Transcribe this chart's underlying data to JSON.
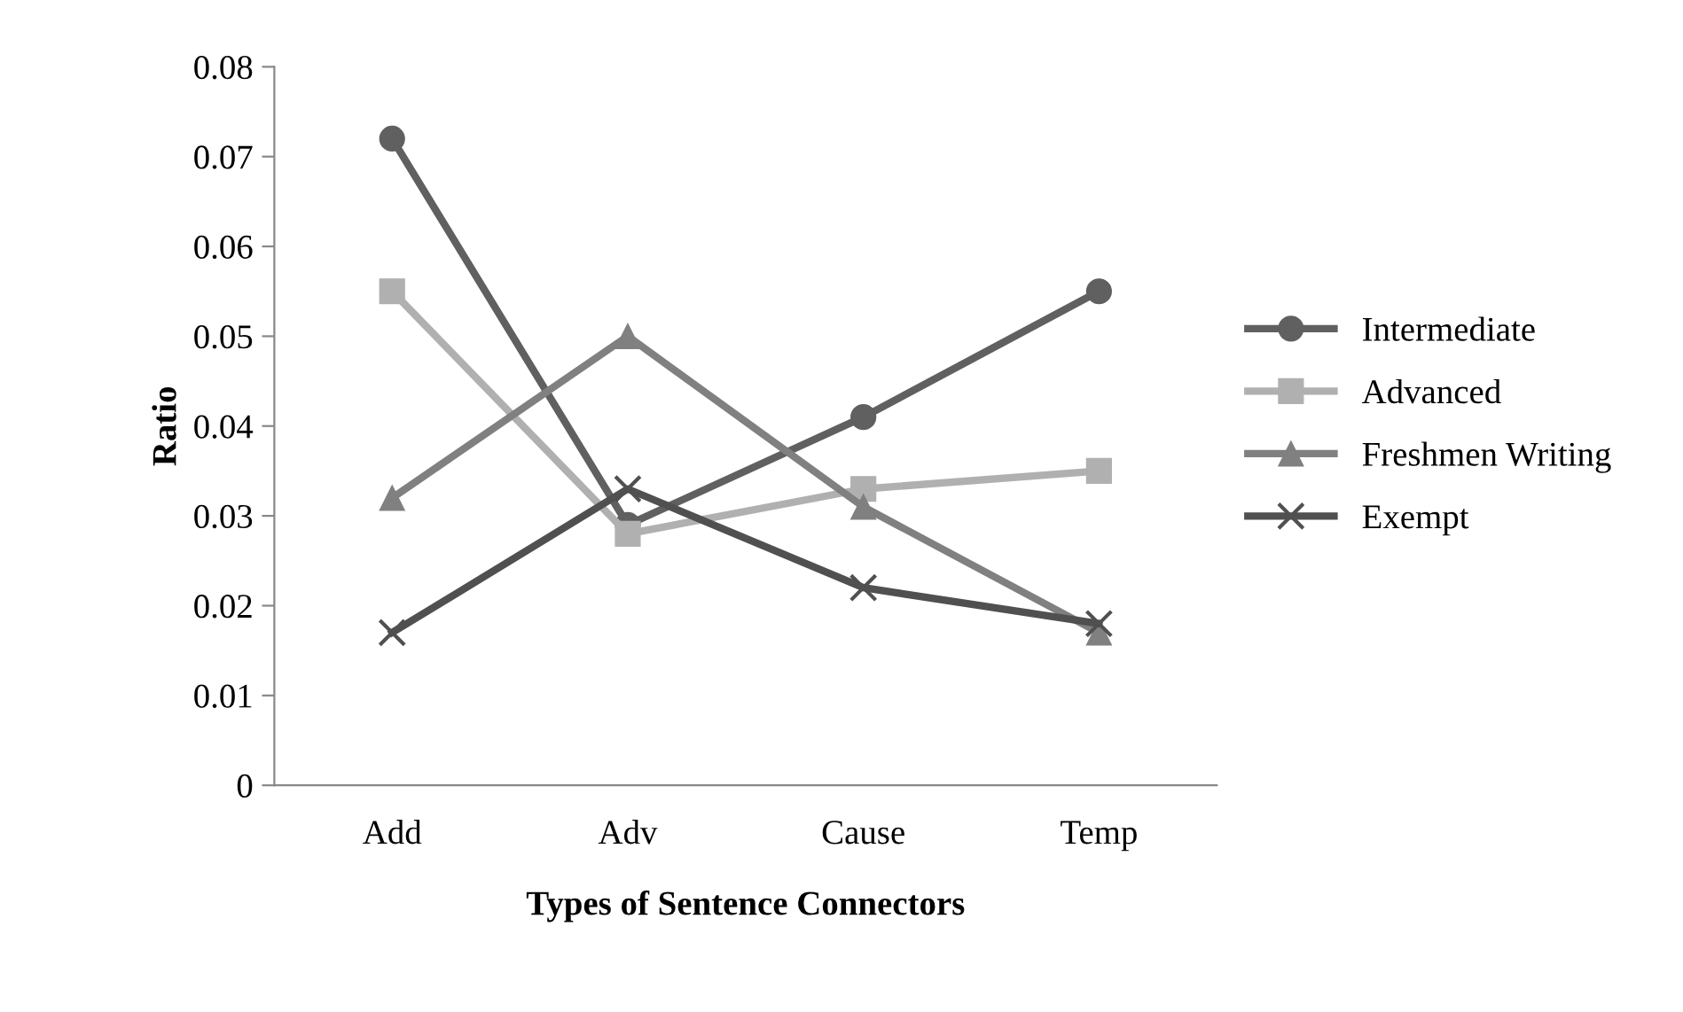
{
  "chart_data": {
    "type": "line",
    "xlabel": "Types of Sentence Connectors",
    "ylabel": "Ratio",
    "categories": [
      "Add",
      "Adv",
      "Cause",
      "Temp"
    ],
    "series": [
      {
        "name": "Intermediate",
        "color": "#606060",
        "marker": "circle",
        "values": [
          0.072,
          0.029,
          0.041,
          0.055
        ]
      },
      {
        "name": "Advanced",
        "color": "#b0b0b0",
        "marker": "square",
        "values": [
          0.055,
          0.028,
          0.033,
          0.035
        ]
      },
      {
        "name": "Freshmen Writing",
        "color": "#808080",
        "marker": "triangle",
        "values": [
          0.032,
          0.05,
          0.031,
          0.017
        ]
      },
      {
        "name": "Exempt",
        "color": "#505050",
        "marker": "cross",
        "values": [
          0.017,
          0.033,
          0.022,
          0.018
        ]
      }
    ],
    "ylim": [
      0,
      0.08
    ],
    "yticks": [
      0,
      0.01,
      0.02,
      0.03,
      0.04,
      0.05,
      0.06,
      0.07,
      0.08
    ],
    "grid": false,
    "legend": "right",
    "line_style": "solid"
  }
}
